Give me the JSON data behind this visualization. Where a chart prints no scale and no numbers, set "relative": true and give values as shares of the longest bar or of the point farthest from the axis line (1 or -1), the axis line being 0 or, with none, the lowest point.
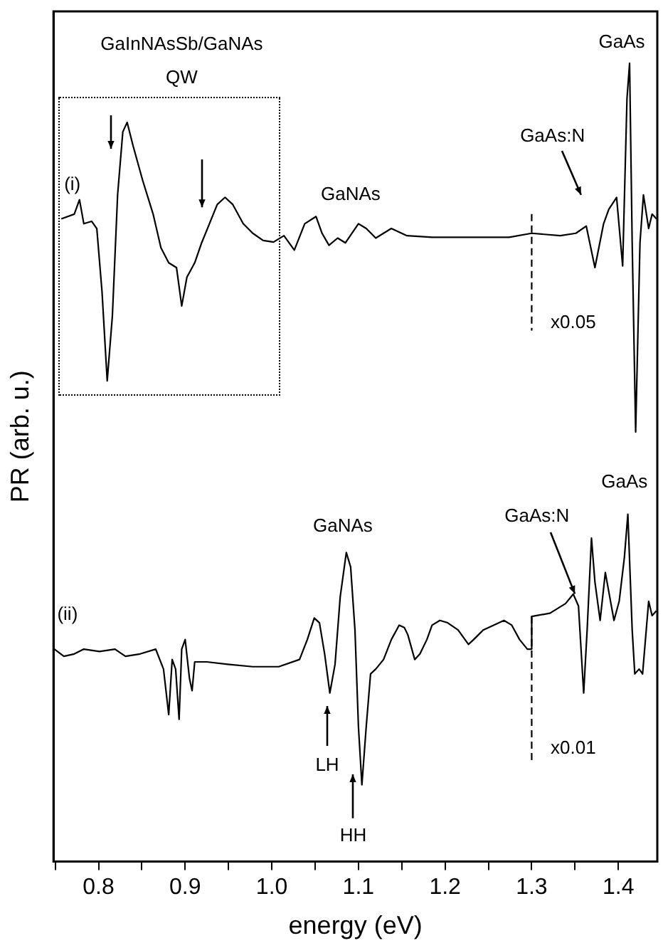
{
  "chart_data": {
    "type": "line",
    "xlabel": "energy (eV)",
    "ylabel": "PR (arb. u.)",
    "relative": true,
    "xlim": [
      0.748,
      1.445
    ],
    "xticks": [
      0.8,
      0.9,
      {
        "value": 1.0,
        "label": "1.0"
      },
      1.1,
      1.2,
      1.3,
      1.4,
      {
        "value": 0.75,
        "label": null
      },
      {
        "value": 0.85,
        "label": null
      },
      {
        "value": 0.95,
        "label": null
      },
      {
        "value": 1.05,
        "label": null
      },
      {
        "value": 1.15,
        "label": null
      },
      {
        "value": 1.25,
        "label": null
      },
      {
        "value": 1.35,
        "label": null
      }
    ],
    "grid": false,
    "legend": false,
    "marker": "none",
    "series": [
      {
        "name": "(i)",
        "color": "#000000",
        "line_style": "solid",
        "x": [
          0.757,
          0.772,
          0.778,
          0.783,
          0.792,
          0.798,
          0.804,
          0.81,
          0.816,
          0.822,
          0.828,
          0.833,
          0.84,
          0.851,
          0.863,
          0.872,
          0.881,
          0.89,
          0.896,
          0.902,
          0.911,
          0.919,
          0.928,
          0.937,
          0.946,
          0.955,
          0.967,
          0.978,
          0.99,
          1.002,
          1.014,
          1.026,
          1.038,
          1.051,
          1.058,
          1.066,
          1.076,
          1.085,
          1.1,
          1.109,
          1.12,
          1.138,
          1.156,
          1.185,
          1.215,
          1.244,
          1.274,
          1.3,
          1.333,
          1.351,
          1.363,
          1.373,
          1.383,
          1.389,
          1.398,
          1.405,
          1.41,
          1.413,
          1.416,
          1.42,
          1.425,
          1.429,
          1.435,
          1.439,
          1.444
        ],
        "values": [
          0.805,
          0.811,
          0.829,
          0.799,
          0.802,
          0.793,
          0.714,
          0.602,
          0.684,
          0.835,
          0.914,
          0.926,
          0.896,
          0.853,
          0.811,
          0.769,
          0.75,
          0.744,
          0.696,
          0.732,
          0.75,
          0.775,
          0.799,
          0.823,
          0.832,
          0.823,
          0.799,
          0.787,
          0.778,
          0.776,
          0.784,
          0.766,
          0.799,
          0.808,
          0.787,
          0.772,
          0.781,
          0.775,
          0.799,
          0.793,
          0.781,
          0.793,
          0.784,
          0.782,
          0.782,
          0.782,
          0.782,
          0.787,
          0.784,
          0.787,
          0.796,
          0.744,
          0.799,
          0.817,
          0.832,
          0.746,
          0.956,
          1.0,
          0.775,
          0.538,
          0.775,
          0.835,
          0.793,
          0.811,
          0.805
        ]
      },
      {
        "name": "(ii)",
        "color": "#000000",
        "line_style": "solid",
        "x": [
          0.749,
          0.76,
          0.772,
          0.783,
          0.801,
          0.819,
          0.831,
          0.848,
          0.866,
          0.875,
          0.881,
          0.885,
          0.889,
          0.893,
          0.896,
          0.9,
          0.905,
          0.908,
          0.911,
          0.925,
          0.949,
          0.978,
          1.008,
          1.032,
          1.041,
          1.049,
          1.055,
          1.061,
          1.067,
          1.073,
          1.079,
          1.086,
          1.091,
          1.096,
          1.1,
          1.104,
          1.109,
          1.114,
          1.12,
          1.129,
          1.138,
          1.147,
          1.153,
          1.157,
          1.165,
          1.171,
          1.179,
          1.185,
          1.194,
          1.203,
          1.215,
          1.227,
          1.233,
          1.244,
          1.256,
          1.268,
          1.277,
          1.286,
          1.295,
          1.3,
          1.3,
          1.321,
          1.339,
          1.348,
          1.354,
          1.36,
          1.364,
          1.369,
          1.373,
          1.379,
          1.385,
          1.389,
          1.395,
          1.401,
          1.407,
          1.411,
          1.416,
          1.419,
          1.424,
          1.428,
          1.435,
          1.439,
          1.444
        ],
        "values": [
          0.266,
          0.257,
          0.26,
          0.266,
          0.263,
          0.266,
          0.257,
          0.26,
          0.266,
          0.241,
          0.184,
          0.253,
          0.241,
          0.178,
          0.266,
          0.278,
          0.229,
          0.214,
          0.25,
          0.25,
          0.247,
          0.244,
          0.244,
          0.253,
          0.278,
          0.305,
          0.299,
          0.26,
          0.211,
          0.247,
          0.332,
          0.387,
          0.369,
          0.29,
          0.169,
          0.096,
          0.169,
          0.235,
          0.241,
          0.253,
          0.278,
          0.296,
          0.293,
          0.284,
          0.253,
          0.26,
          0.278,
          0.296,
          0.302,
          0.299,
          0.29,
          0.272,
          0.278,
          0.29,
          0.296,
          0.302,
          0.296,
          0.278,
          0.266,
          0.266,
          0.307,
          0.311,
          0.323,
          0.335,
          0.32,
          0.211,
          0.29,
          0.405,
          0.35,
          0.302,
          0.362,
          0.338,
          0.302,
          0.326,
          0.381,
          0.435,
          0.29,
          0.235,
          0.241,
          0.235,
          0.326,
          0.308,
          0.314
        ]
      },
      {
        "color": "#000000",
        "line_style": "dashed",
        "x": [
          1.3,
          1.3
        ],
        "values": [
          0.811,
          0.665
        ]
      },
      {
        "color": "#000000",
        "line_style": "dashed",
        "x": [
          1.3,
          1.3
        ],
        "values": [
          0.307,
          0.125
        ]
      }
    ],
    "annotations": [
      "GaInNAsSb/GaNAs",
      "QW",
      "GaNAs",
      "GaAs:N",
      "GaAs",
      "x0.05",
      "GaNAs",
      "GaAs:N",
      "GaAs",
      "LH",
      "HH",
      "x0.01"
    ]
  }
}
